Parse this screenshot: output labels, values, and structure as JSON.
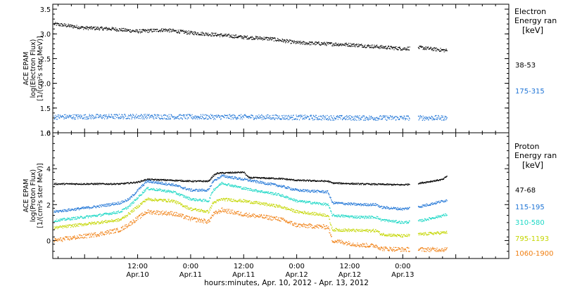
{
  "chart_data": [
    {
      "type": "scatter",
      "panel": "electron",
      "ylabel": [
        "ACE EPAM",
        "log(Electron Flux)",
        "[1/(cm²s ster MeV)]"
      ],
      "ylim": [
        1.0,
        3.6
      ],
      "yticks": [
        "1.0",
        "1.5",
        "2.0",
        "2.5",
        "3.0",
        "3.5"
      ],
      "xlim_hours": [
        -7.2,
        96
      ],
      "legend_title": [
        "Electron",
        "Energy ran",
        "[keV]"
      ],
      "data_gap_hours": [
        [
          73.5,
          75.4
        ]
      ],
      "series": [
        {
          "name": "38-53",
          "color": "#000000",
          "points": [
            [
              -7,
              3.2
            ],
            [
              0,
              3.12
            ],
            [
              6,
              3.1
            ],
            [
              12,
              3.05
            ],
            [
              18,
              3.08
            ],
            [
              24,
              3.02
            ],
            [
              30,
              2.98
            ],
            [
              36,
              2.93
            ],
            [
              42,
              2.9
            ],
            [
              48,
              2.82
            ],
            [
              54,
              2.8
            ],
            [
              60,
              2.78
            ],
            [
              66,
              2.74
            ],
            [
              72,
              2.7
            ],
            [
              76,
              2.72
            ],
            [
              82,
              2.66
            ]
          ],
          "noise": 0.035
        },
        {
          "name": "175-315",
          "color": "#1e74d6",
          "points": [
            [
              -7,
              1.32
            ],
            [
              12,
              1.33
            ],
            [
              24,
              1.32
            ],
            [
              36,
              1.32
            ],
            [
              48,
              1.31
            ],
            [
              60,
              1.3
            ],
            [
              72,
              1.3
            ],
            [
              82,
              1.3
            ]
          ],
          "noise": 0.05
        }
      ]
    },
    {
      "type": "scatter",
      "panel": "proton",
      "ylabel": [
        "ACE EPAM",
        "log(Proton Flux)",
        "[1/(cm²s ster MeV)]"
      ],
      "ylim": [
        -1,
        6
      ],
      "yticks": [
        "0",
        "2",
        "4",
        "6"
      ],
      "xlim_hours": [
        -7.2,
        96
      ],
      "legend_title": [
        "Proton",
        "Energy ran",
        "[keV]"
      ],
      "data_gap_hours": [
        [
          73.5,
          75.4
        ]
      ],
      "series": [
        {
          "name": "47-68",
          "color": "#000000",
          "points": [
            [
              -7,
              3.15
            ],
            [
              8,
              3.15
            ],
            [
              12,
              3.25
            ],
            [
              14,
              3.4
            ],
            [
              20,
              3.35
            ],
            [
              24,
              3.3
            ],
            [
              28,
              3.3
            ],
            [
              29,
              3.6
            ],
            [
              30,
              3.75
            ],
            [
              36,
              3.8
            ],
            [
              37,
              3.5
            ],
            [
              44,
              3.45
            ],
            [
              48,
              3.35
            ],
            [
              55,
              3.3
            ],
            [
              56,
              3.2
            ],
            [
              62,
              3.15
            ],
            [
              72,
              3.1
            ],
            [
              76,
              3.2
            ],
            [
              81,
              3.4
            ],
            [
              82,
              3.6
            ]
          ],
          "noise": 0.04
        },
        {
          "name": "115-195",
          "color": "#1e74d6",
          "points": [
            [
              -7,
              1.6
            ],
            [
              3,
              1.9
            ],
            [
              8,
              2.1
            ],
            [
              10,
              2.3
            ],
            [
              14,
              3.3
            ],
            [
              20,
              3.1
            ],
            [
              24,
              2.8
            ],
            [
              28,
              2.8
            ],
            [
              29,
              3.3
            ],
            [
              31,
              3.6
            ],
            [
              36,
              3.4
            ],
            [
              44,
              3.05
            ],
            [
              48,
              2.8
            ],
            [
              55,
              2.7
            ],
            [
              56,
              2.1
            ],
            [
              62,
              2.0
            ],
            [
              66,
              2.0
            ],
            [
              67,
              1.85
            ],
            [
              72,
              1.75
            ],
            [
              76,
              1.9
            ],
            [
              82,
              2.25
            ]
          ],
          "noise": 0.07
        },
        {
          "name": "310-580",
          "color": "#1ed8c6",
          "points": [
            [
              -7,
              1.1
            ],
            [
              3,
              1.4
            ],
            [
              8,
              1.6
            ],
            [
              10,
              1.9
            ],
            [
              14,
              2.9
            ],
            [
              20,
              2.7
            ],
            [
              24,
              2.3
            ],
            [
              28,
              2.2
            ],
            [
              29,
              2.8
            ],
            [
              31,
              3.2
            ],
            [
              36,
              2.9
            ],
            [
              44,
              2.55
            ],
            [
              48,
              2.2
            ],
            [
              55,
              2.0
            ],
            [
              56,
              1.4
            ],
            [
              62,
              1.3
            ],
            [
              66,
              1.3
            ],
            [
              67,
              1.15
            ],
            [
              72,
              1.0
            ],
            [
              76,
              1.1
            ],
            [
              82,
              1.45
            ]
          ],
          "noise": 0.07
        },
        {
          "name": "795-1193",
          "color": "#c4d600",
          "points": [
            [
              -7,
              0.7
            ],
            [
              3,
              1.0
            ],
            [
              8,
              1.15
            ],
            [
              10,
              1.5
            ],
            [
              14,
              2.3
            ],
            [
              20,
              2.2
            ],
            [
              24,
              1.75
            ],
            [
              28,
              1.6
            ],
            [
              29,
              2.1
            ],
            [
              31,
              2.3
            ],
            [
              36,
              2.2
            ],
            [
              44,
              1.9
            ],
            [
              48,
              1.6
            ],
            [
              55,
              1.4
            ],
            [
              56,
              0.6
            ],
            [
              62,
              0.55
            ],
            [
              66,
              0.55
            ],
            [
              67,
              0.35
            ],
            [
              72,
              0.25
            ],
            [
              76,
              0.35
            ],
            [
              82,
              0.45
            ]
          ],
          "noise": 0.08
        },
        {
          "name": "1060-1900",
          "color": "#f07e10",
          "points": [
            [
              -7,
              0.0
            ],
            [
              3,
              0.35
            ],
            [
              8,
              0.6
            ],
            [
              10,
              0.9
            ],
            [
              14,
              1.6
            ],
            [
              20,
              1.5
            ],
            [
              24,
              1.2
            ],
            [
              28,
              1.05
            ],
            [
              29,
              1.45
            ],
            [
              31,
              1.7
            ],
            [
              36,
              1.45
            ],
            [
              44,
              1.2
            ],
            [
              48,
              0.85
            ],
            [
              55,
              0.75
            ],
            [
              56,
              0.0
            ],
            [
              62,
              -0.25
            ],
            [
              66,
              -0.3
            ],
            [
              67,
              -0.45
            ],
            [
              72,
              -0.5
            ],
            [
              76,
              -0.5
            ],
            [
              82,
              -0.5
            ]
          ],
          "noise": 0.12
        }
      ]
    }
  ],
  "x_axis": {
    "ticks": [
      {
        "h": 12,
        "time": "12:00",
        "date": "Apr.10"
      },
      {
        "h": 24,
        "time": "0:00",
        "date": "Apr.11"
      },
      {
        "h": 36,
        "time": "12:00",
        "date": "Apr.11"
      },
      {
        "h": 48,
        "time": "0:00",
        "date": "Apr.12"
      },
      {
        "h": 60,
        "time": "12:00",
        "date": "Apr.12"
      },
      {
        "h": 72,
        "time": "0:00",
        "date": "Apr.13"
      }
    ],
    "label": "hours:minutes, Apr. 10, 2012 - Apr. 13, 2012"
  }
}
